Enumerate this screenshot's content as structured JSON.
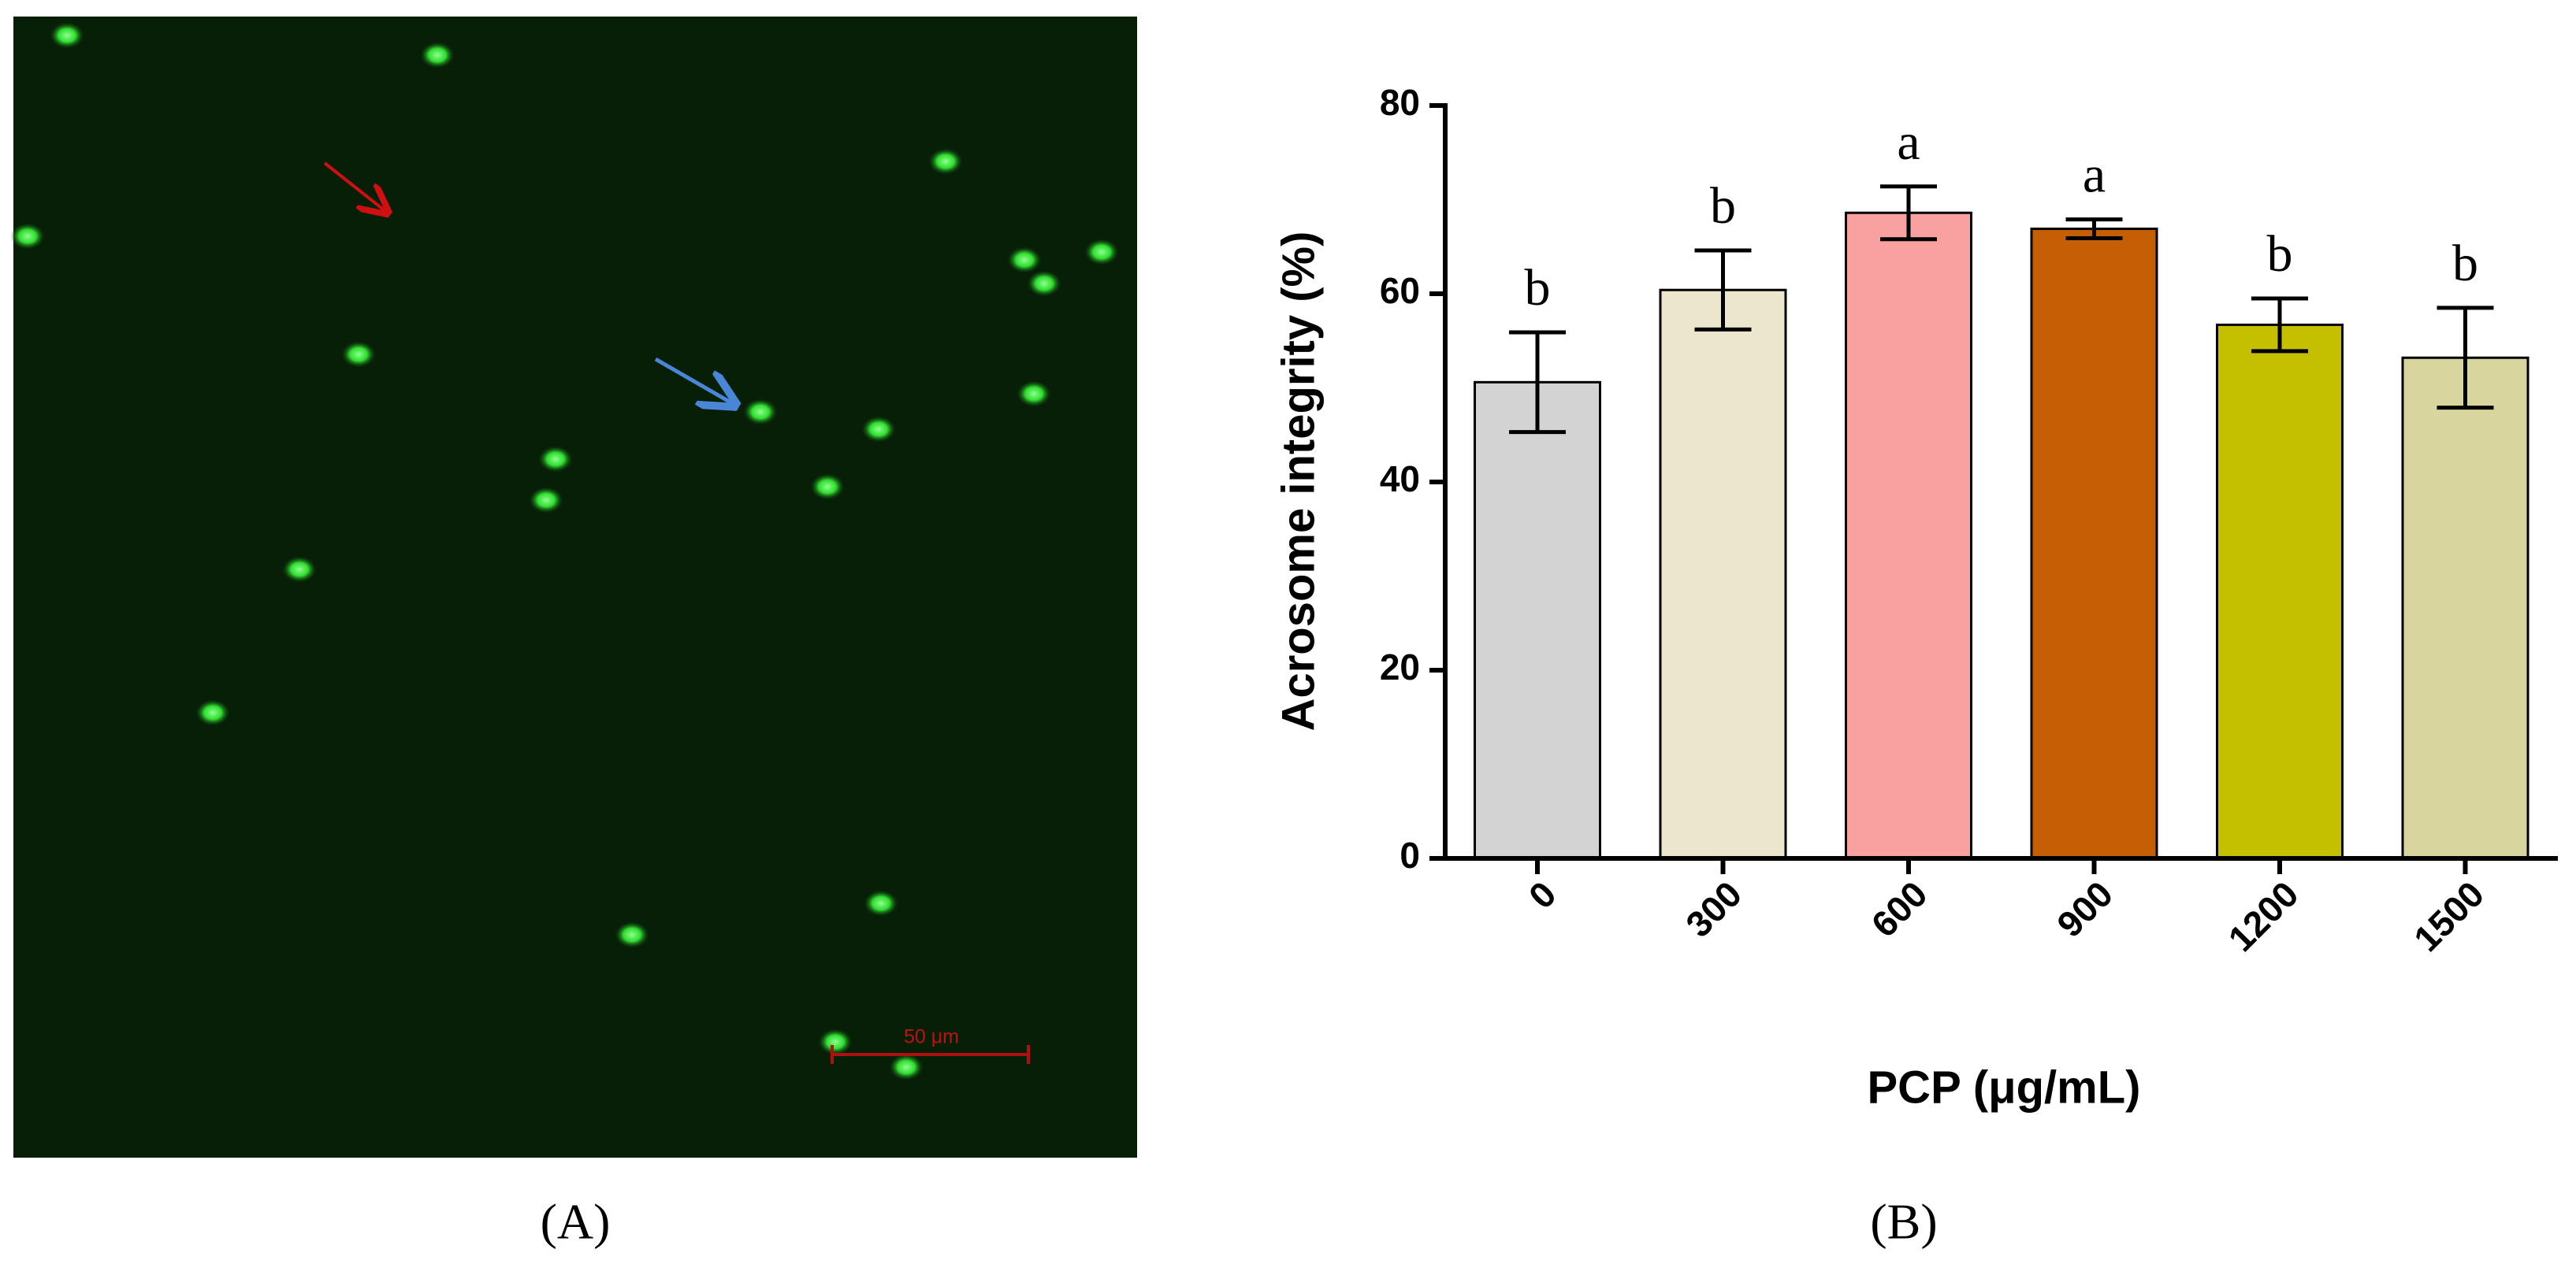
{
  "image_panel": {
    "scale_bar": "50 μm",
    "label": "(A)"
  },
  "chart_label": "(B)",
  "chart_data": {
    "type": "bar",
    "x_label": "PCP (μg/mL)",
    "y_label": "Acrosome integrity (%)",
    "categories": [
      "0",
      "300",
      "600",
      "900",
      "1200",
      "1500"
    ],
    "values": [
      50.6,
      60.4,
      68.6,
      66.9,
      56.7,
      53.2
    ],
    "errors": [
      5.3,
      4.2,
      2.8,
      1.0,
      2.8,
      5.3
    ],
    "annotations": [
      "b",
      "b",
      "a",
      "a",
      "b",
      "b"
    ],
    "colors": [
      "#d3d3d3",
      "#ebe6cc",
      "#f9a0a0",
      "#c45f05",
      "#c4c000",
      "#d8d59e"
    ],
    "ylim": [
      0,
      80
    ],
    "yticks": [
      0,
      20,
      40,
      60,
      80
    ],
    "grid": false
  }
}
